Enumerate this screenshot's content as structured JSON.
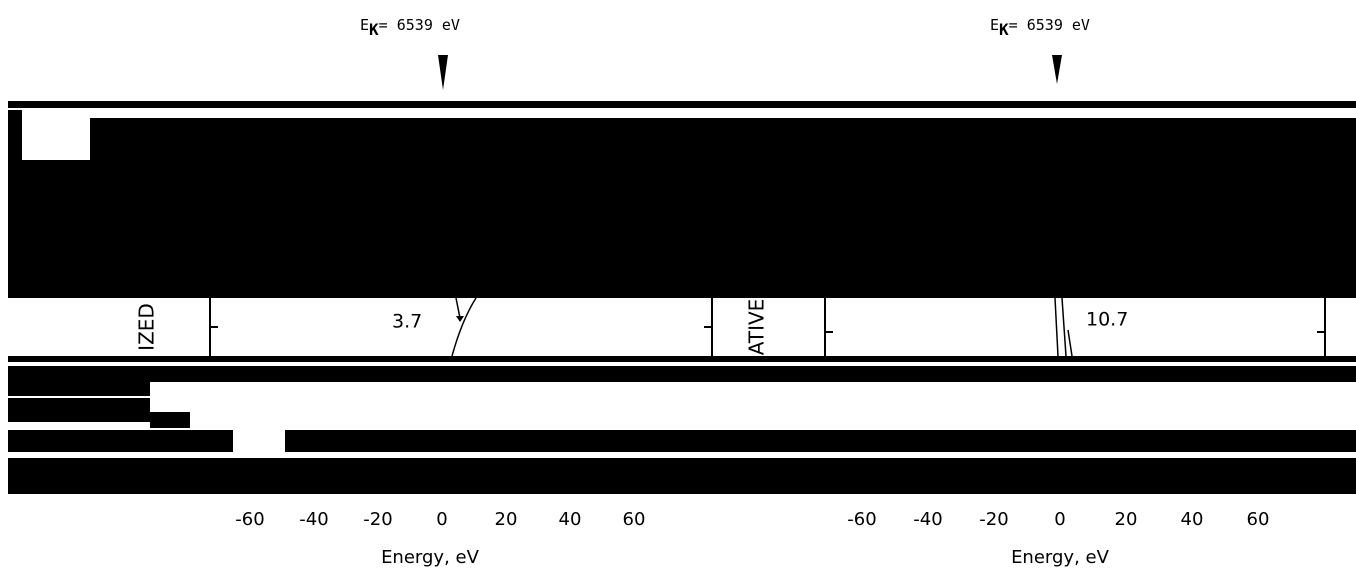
{
  "panels": [
    {
      "annotation": {
        "symbol": "E",
        "subscript": "K",
        "text": "= 6539 eV"
      },
      "y_label": "IZED",
      "peak_label": "3.7",
      "x_ticks": [
        -60,
        -40,
        -20,
        0,
        20,
        40,
        60
      ],
      "x_label": "Energy, eV"
    },
    {
      "annotation": {
        "symbol": "E",
        "subscript": "K",
        "text": "= 6539 eV"
      },
      "y_label": "ATIVE",
      "peak_label": "10.7",
      "x_ticks": [
        -60,
        -40,
        -20,
        0,
        20,
        40,
        60
      ],
      "x_label": "Energy, eV"
    }
  ]
}
